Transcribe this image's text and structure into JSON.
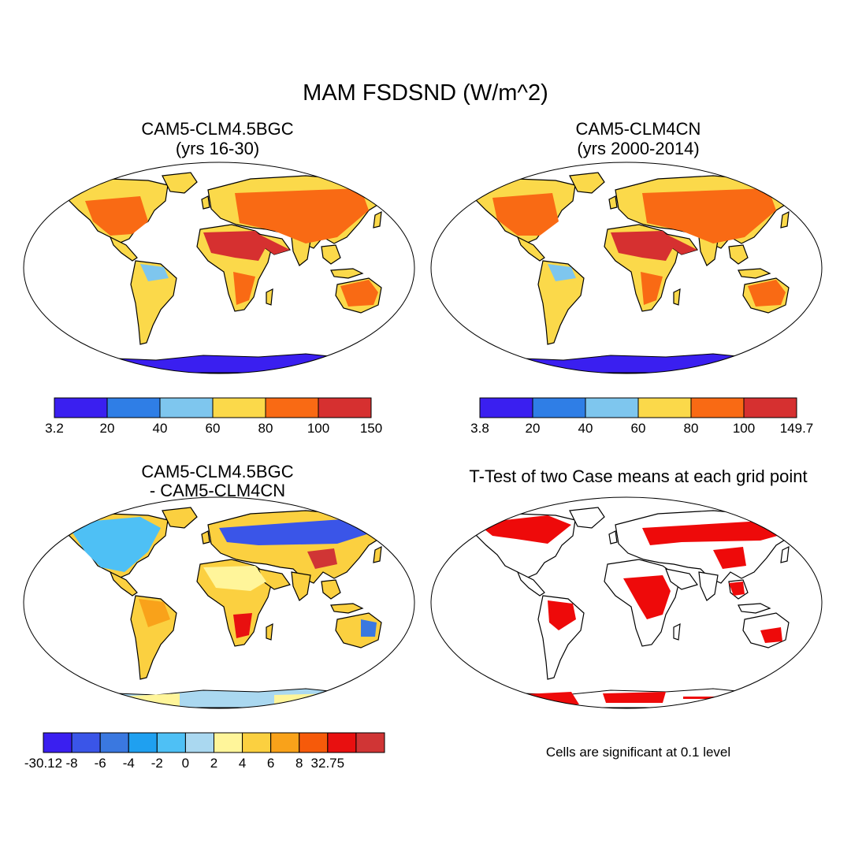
{
  "title": "MAM FSDSND (W/m^2)",
  "panels": [
    {
      "title_line1": "CAM5-CLM4.5BGC",
      "title_line2": "(yrs 16-30)"
    },
    {
      "title_line1": "CAM5-CLM4CN",
      "title_line2": "(yrs 2000-2014)"
    },
    {
      "title_line1": "CAM5-CLM4.5BGC",
      "title_line2": "- CAM5-CLM4CN"
    },
    {
      "title_line1": "T-Test of two Case means at each grid point"
    }
  ],
  "colorbars": {
    "case1": {
      "labels": [
        "3.2",
        "20",
        "40",
        "60",
        "80",
        "100",
        "150"
      ],
      "colors": [
        "#3a1ff0",
        "#2f7ee6",
        "#7ec6ee",
        "#fbd94a",
        "#f96a14",
        "#d63030"
      ]
    },
    "case2": {
      "labels": [
        "3.8",
        "20",
        "40",
        "60",
        "80",
        "100",
        "149.7"
      ],
      "colors": [
        "#3a1ff0",
        "#2f7ee6",
        "#7ec6ee",
        "#fbd94a",
        "#f96a14",
        "#d63030"
      ]
    },
    "diff": {
      "labels": [
        "-30.12",
        "-8",
        "-6",
        "-4",
        "-2",
        "0",
        "2",
        "4",
        "6",
        "8",
        "32.75"
      ],
      "colors": [
        "#3a1ff0",
        "#3a55e8",
        "#3a78e0",
        "#1fa0f0",
        "#4ec0f5",
        "#aad8f0",
        "#fff59a",
        "#fbd040",
        "#f9a21a",
        "#f65a0a",
        "#e81010",
        "#d03535"
      ]
    }
  },
  "note": "Cells are significant at 0.1 level",
  "colors": {
    "ocean": "#ffffff",
    "antarctica_case": "#3a1ff0",
    "antarctica_diff": "#aad8f0",
    "significant": "#ee0a0a"
  }
}
